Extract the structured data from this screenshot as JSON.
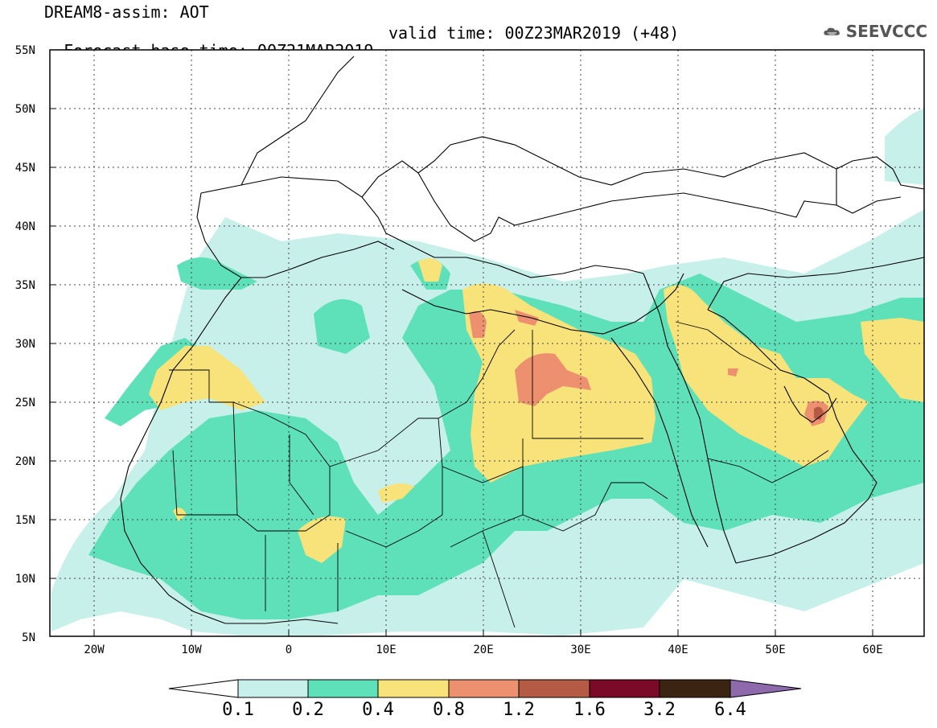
{
  "header": {
    "title_line1": "DREAM8-assim: AOT",
    "base_time": "Forecast base time: 00Z21MAR2019",
    "valid_time": "valid time: 00Z23MAR2019 (+48)"
  },
  "logo": {
    "text": "SEEVCCC",
    "icon": "cloud-icon"
  },
  "map": {
    "variable": "Aerosol Optical Thickness",
    "lon_range": [
      -25,
      65
    ],
    "lat_range": [
      5,
      55
    ],
    "lon_ticks": [
      "20W",
      "10W",
      "0",
      "10E",
      "20E",
      "30E",
      "40E",
      "50E",
      "60E"
    ],
    "lat_ticks": [
      "55N",
      "50N",
      "45N",
      "40N",
      "35N",
      "30N",
      "25N",
      "20N",
      "15N",
      "10N",
      "5N"
    ],
    "notable_features": [
      "AOT 0.8-1.2 maximum over western Egypt / Libya",
      "AOT 0.8-1.6 over the United Arab Emirates / Oman",
      "AOT 0.4-0.8 over the Saudi Arabian peninsula and Egypt",
      "AOT 0.4-0.8 over Morocco / Western Sahara and Niger / Nigeria border"
    ]
  },
  "colorbar": {
    "levels": [
      "0.1",
      "0.2",
      "0.4",
      "0.8",
      "1.2",
      "1.6",
      "3.2",
      "6.4"
    ],
    "colors": [
      "#c8f0ea",
      "#5ee0b8",
      "#f8e27a",
      "#ec9070",
      "#b55a45",
      "#7a0a28",
      "#3c2413",
      "#8e6aad"
    ]
  }
}
